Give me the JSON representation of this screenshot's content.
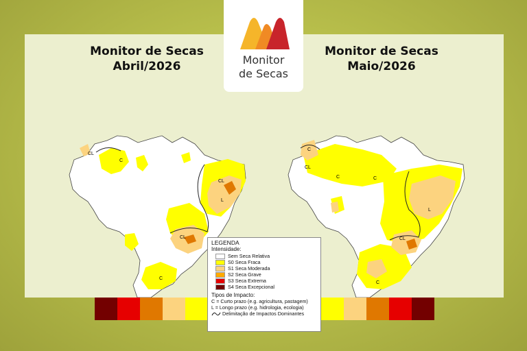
{
  "logo": {
    "brand_line1": "Monitor",
    "brand_line2": "de Secas"
  },
  "maps": [
    {
      "title_line1": "Monitor de Secas",
      "title_line2": "Abril/2026"
    },
    {
      "title_line1": "Monitor de Secas",
      "title_line2": "Maio/2026"
    }
  ],
  "map_labels": {
    "short_term": "C",
    "long_term": "L",
    "combined": "CL"
  },
  "legend": {
    "title": "LEGENDA",
    "intensity_heading": "Intensidade:",
    "categories": [
      {
        "label": "Sem Seca Relativa",
        "color": "#ffffff"
      },
      {
        "label": "S0 Seca Fraca",
        "color": "#ffff00"
      },
      {
        "label": "S1 Seca Moderada",
        "color": "#fcd37f"
      },
      {
        "label": "S2 Seca Grave",
        "color": "#ffaa00"
      },
      {
        "label": "S3 Seca Extrema",
        "color": "#e60000"
      },
      {
        "label": "S4 Seca Excepcional",
        "color": "#730000"
      }
    ],
    "impact_heading": "Tipos de Impacto:",
    "impact_short": "C = Curto prazo (e.g. agricultura, pastagem)",
    "impact_long": "L = Longo prazo (e.g. hidrologia, ecologia)",
    "delimitation": "Delimitação de Impactos Dominantes"
  },
  "scale_strip_colors": [
    "#730000",
    "#e60000",
    "#e07800",
    "#fcd37f",
    "#ffff00",
    "#ffff00",
    "#ffff00",
    "#ffff00",
    "#ffff00",
    "#ffff00",
    "#ffff00",
    "#fcd37f",
    "#e07800",
    "#e60000",
    "#730000"
  ]
}
